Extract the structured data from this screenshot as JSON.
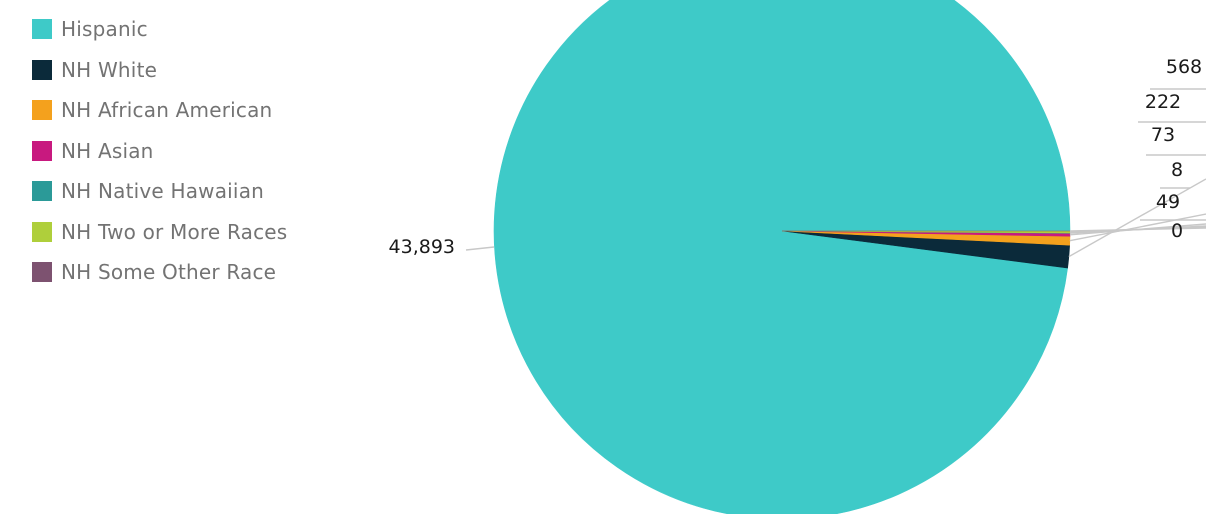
{
  "chart_data": {
    "type": "pie",
    "title": "",
    "legend_position": "top-left",
    "series": [
      {
        "name": "Hispanic",
        "value": 43893,
        "label": "43,893",
        "color": "#3ecac8"
      },
      {
        "name": "NH White",
        "value": 568,
        "label": "568",
        "color": "#0b2a3a"
      },
      {
        "name": "NH African American",
        "value": 222,
        "label": "222",
        "color": "#f4a11d"
      },
      {
        "name": "NH Asian",
        "value": 73,
        "label": "73",
        "color": "#c8197f"
      },
      {
        "name": "NH Native Hawaiian",
        "value": 8,
        "label": "8",
        "color": "#2b9a98"
      },
      {
        "name": "NH Two or More Races",
        "value": 49,
        "label": "49",
        "color": "#afcf3b"
      },
      {
        "name": "NH Some Other Race",
        "value": 0,
        "label": "0",
        "color": "#7d5270"
      }
    ]
  }
}
